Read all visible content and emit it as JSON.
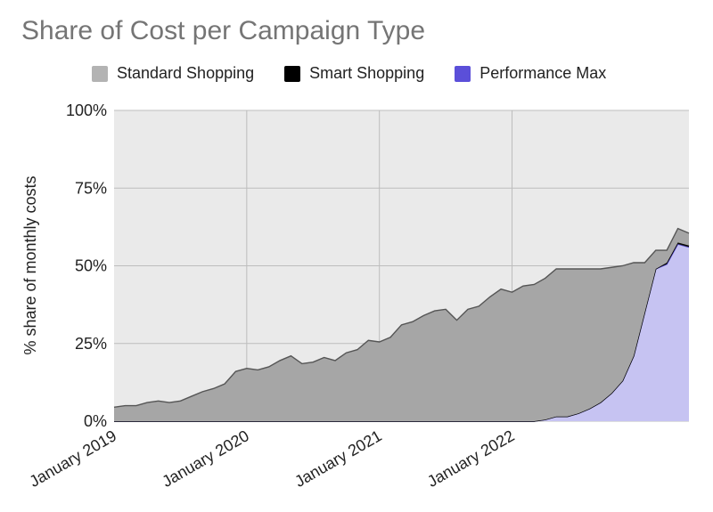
{
  "chart_data": {
    "type": "area",
    "stacked": true,
    "title": "Share of Cost per Campaign Type",
    "ylabel": "% share of monthly costs",
    "xlabel": "",
    "ylim": [
      0,
      100
    ],
    "y_ticks": [
      "0%",
      "25%",
      "50%",
      "75%",
      "100%"
    ],
    "x_ticks": [
      "January 2019",
      "January 2020",
      "January 2021",
      "January 2022"
    ],
    "grid": true,
    "legend_position": "top",
    "series": [
      {
        "name": "Performance Max",
        "color": "#5b4fd9",
        "fill": "#c6c3f2",
        "values": [
          0,
          0,
          0,
          0,
          0,
          0,
          0,
          0,
          0,
          0,
          0,
          0,
          0,
          0,
          0,
          0,
          0,
          0,
          0,
          0,
          0,
          0,
          0,
          0,
          0,
          0,
          0,
          0,
          0,
          0,
          0,
          0,
          0,
          0,
          0,
          0,
          0,
          0,
          0,
          0.5,
          1.5,
          1.5,
          2.5,
          4,
          6,
          9,
          13,
          21,
          35,
          49,
          50.5,
          57,
          56
        ]
      },
      {
        "name": "Smart Shopping",
        "color": "#000000",
        "fill": "#111111",
        "values": [
          0,
          0,
          0,
          0,
          0,
          0,
          0,
          0,
          0,
          0,
          0,
          0,
          0,
          0,
          0,
          0,
          0,
          0,
          0,
          0,
          0,
          0,
          0,
          0,
          0,
          0,
          0,
          0,
          0,
          0,
          0,
          0,
          0,
          0,
          0,
          0,
          0,
          0,
          0,
          0,
          0,
          0,
          0,
          0,
          0,
          0,
          0,
          0,
          0,
          0,
          0.5,
          0.5,
          0.5
        ]
      },
      {
        "name": "Standard Shopping",
        "color": "#555555",
        "fill": "#a6a6a6",
        "values": [
          4.5,
          5,
          5,
          6,
          6.5,
          6,
          6.5,
          8,
          9.5,
          10.5,
          12,
          16,
          17,
          16.5,
          17.5,
          19.5,
          21,
          18.5,
          19,
          20.5,
          19.5,
          22,
          23,
          26,
          25.5,
          27,
          31,
          32,
          34,
          35.5,
          36,
          32.5,
          36,
          37,
          40,
          42.5,
          41.5,
          43.5,
          44,
          45.5,
          47.5,
          47.5,
          46.5,
          45,
          43,
          40.5,
          37,
          30,
          16,
          6,
          4,
          4.5,
          4
        ]
      }
    ]
  }
}
